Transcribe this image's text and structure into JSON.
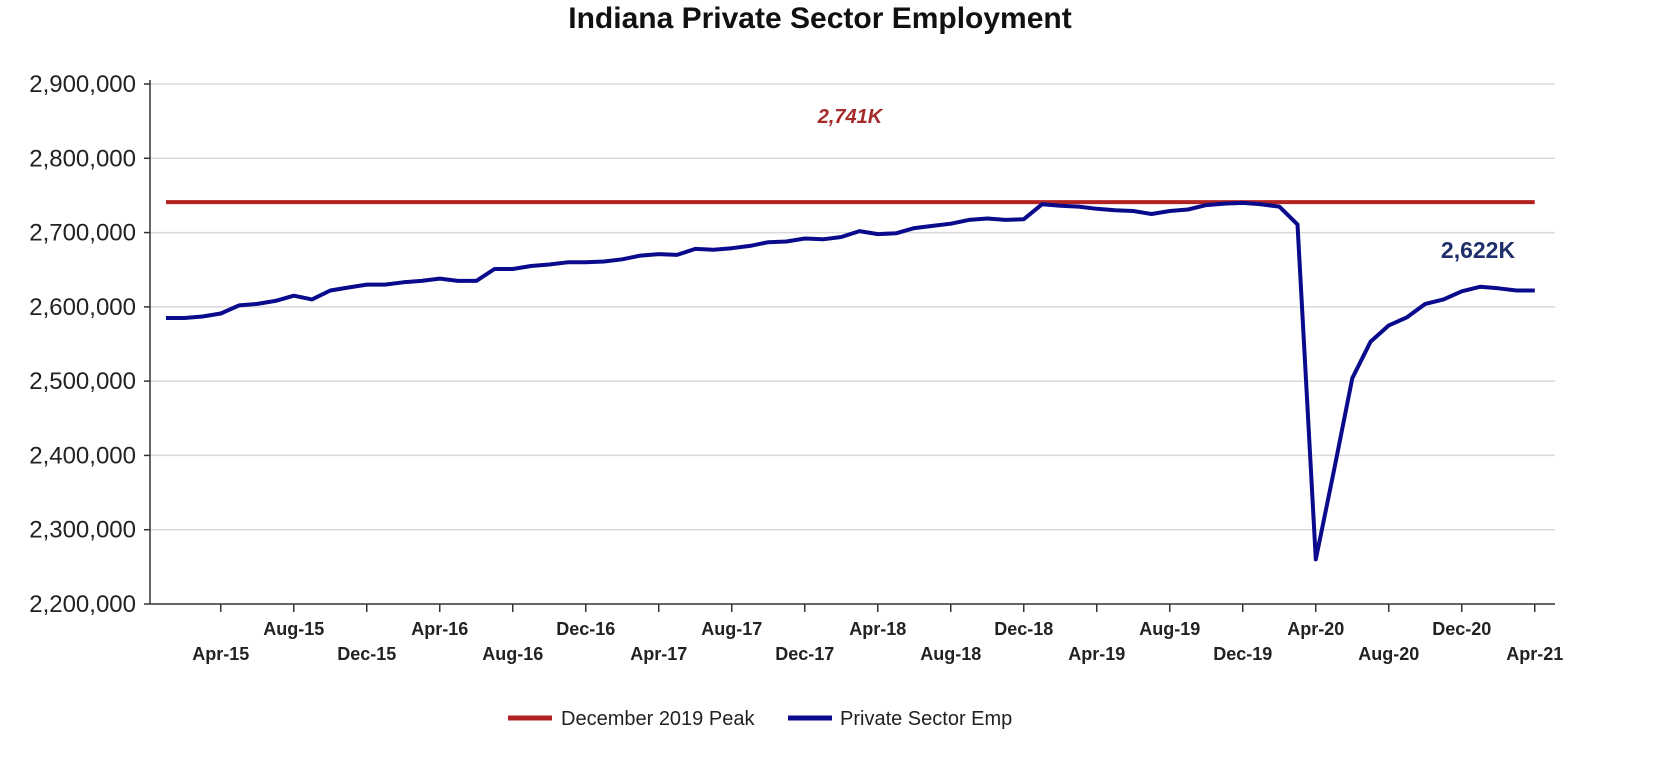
{
  "chart_data": {
    "type": "line",
    "title": "Indiana Private Sector Employment",
    "xlabel": "",
    "ylabel": "",
    "ylim": [
      2200000,
      2900000
    ],
    "yticks": [
      "2,200,000",
      "2,300,000",
      "2,400,000",
      "2,500,000",
      "2,600,000",
      "2,700,000",
      "2,800,000",
      "2,900,000"
    ],
    "xtick_labels": [
      "Apr-15",
      "Aug-15",
      "Dec-15",
      "Apr-16",
      "Aug-16",
      "Dec-16",
      "Apr-17",
      "Aug-17",
      "Dec-17",
      "Apr-18",
      "Aug-18",
      "Dec-18",
      "Apr-19",
      "Aug-19",
      "Dec-19",
      "Apr-20",
      "Aug-20",
      "Dec-20",
      "Apr-21"
    ],
    "x_start": "Jan-15",
    "x_end": "Apr-21",
    "grid": true,
    "legend_position": "bottom",
    "annotations": [
      {
        "text": "2,741K",
        "series": "December 2019 Peak",
        "color": "#a52a2a"
      },
      {
        "text": "2,622K",
        "series": "Private Sector Emp",
        "color": "#1f2f6b"
      }
    ],
    "series": [
      {
        "name": "December 2019 Peak",
        "color": "#b22222",
        "values": [
          2741000
        ]
      },
      {
        "name": "Private Sector Emp",
        "color": "#0a0a8c",
        "values": [
          2585000,
          2585000,
          2587000,
          2591000,
          2602000,
          2604000,
          2608000,
          2615000,
          2610000,
          2622000,
          2626000,
          2630000,
          2630000,
          2633000,
          2635000,
          2638000,
          2635000,
          2635000,
          2651000,
          2651000,
          2655000,
          2657000,
          2660000,
          2660000,
          2661000,
          2664000,
          2669000,
          2671000,
          2670000,
          2678000,
          2677000,
          2679000,
          2682000,
          2687000,
          2688000,
          2692000,
          2691000,
          2694000,
          2702000,
          2698000,
          2699000,
          2706000,
          2709000,
          2712000,
          2717000,
          2719000,
          2717000,
          2718000,
          2738000,
          2736000,
          2735000,
          2732000,
          2730000,
          2729000,
          2725000,
          2729000,
          2731000,
          2737000,
          2739000,
          2740000,
          2738000,
          2735000,
          2711000,
          2260000,
          2380000,
          2504000,
          2553000,
          2575000,
          2586000,
          2604000,
          2610000,
          2621000,
          2627000,
          2625000,
          2622000,
          2622000
        ]
      }
    ]
  }
}
